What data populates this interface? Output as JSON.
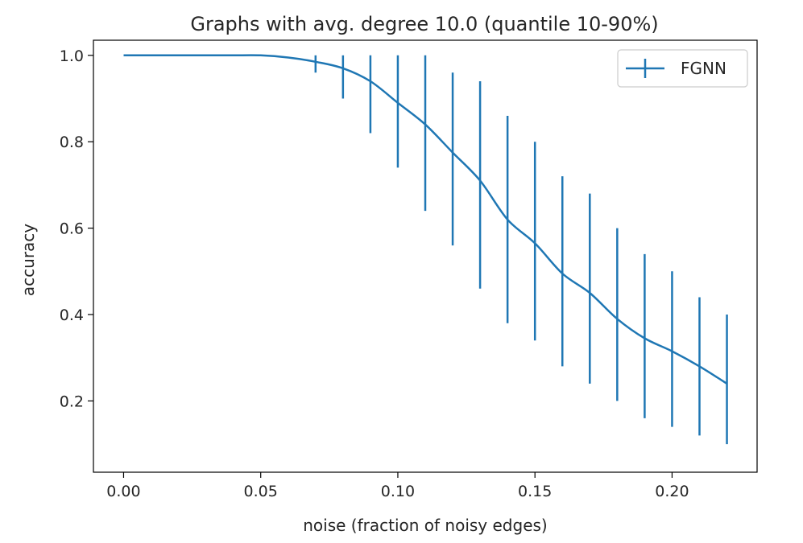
{
  "chart_data": {
    "type": "line",
    "title": "Graphs with avg. degree 10.0 (quantile 10-90%)",
    "xlabel": "noise (fraction of noisy edges)",
    "ylabel": "accuracy",
    "xlim": [
      -0.011,
      0.231
    ],
    "ylim": [
      0.035,
      1.035
    ],
    "xticks": [
      0.0,
      0.05,
      0.1,
      0.15,
      0.2
    ],
    "xtick_labels": [
      "0.00",
      "0.05",
      "0.10",
      "0.15",
      "0.20"
    ],
    "yticks": [
      0.2,
      0.4,
      0.6,
      0.8,
      1.0
    ],
    "ytick_labels": [
      "0.2",
      "0.4",
      "0.6",
      "0.8",
      "1.0"
    ],
    "grid": false,
    "legend": {
      "position": "top-right",
      "entries": [
        "FGNN"
      ]
    },
    "series": [
      {
        "name": "FGNN",
        "color": "#1f77b4",
        "x": [
          0.0,
          0.01,
          0.02,
          0.03,
          0.04,
          0.05,
          0.06,
          0.07,
          0.08,
          0.09,
          0.1,
          0.11,
          0.12,
          0.13,
          0.14,
          0.15,
          0.16,
          0.17,
          0.18,
          0.19,
          0.2,
          0.21,
          0.22
        ],
        "y": [
          1.0,
          1.0,
          1.0,
          1.0,
          1.0,
          1.0,
          0.995,
          0.985,
          0.97,
          0.94,
          0.89,
          0.84,
          0.775,
          0.71,
          0.62,
          0.565,
          0.495,
          0.45,
          0.39,
          0.345,
          0.315,
          0.28,
          0.24
        ],
        "err_low": [
          1.0,
          1.0,
          1.0,
          1.0,
          1.0,
          1.0,
          0.995,
          0.96,
          0.9,
          0.82,
          0.74,
          0.64,
          0.56,
          0.46,
          0.38,
          0.34,
          0.28,
          0.24,
          0.2,
          0.16,
          0.14,
          0.12,
          0.1
        ],
        "err_high": [
          1.0,
          1.0,
          1.0,
          1.0,
          1.0,
          1.0,
          0.995,
          1.0,
          1.0,
          1.0,
          1.0,
          1.0,
          0.96,
          0.94,
          0.86,
          0.8,
          0.72,
          0.68,
          0.6,
          0.54,
          0.5,
          0.44,
          0.4
        ],
        "show_errorbar_from": 0.07
      }
    ]
  }
}
